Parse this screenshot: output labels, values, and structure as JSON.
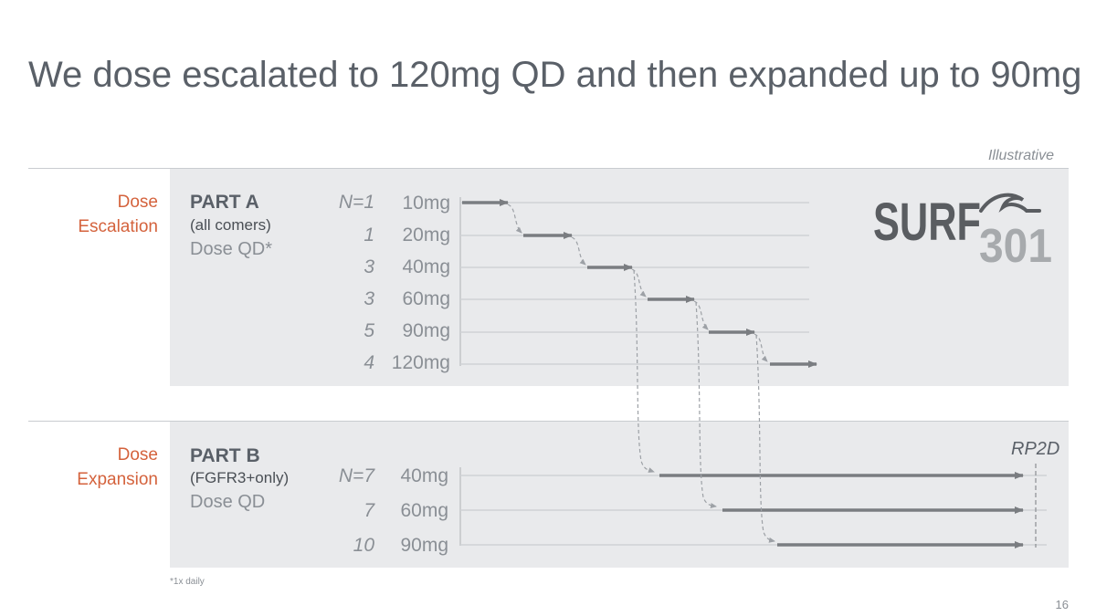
{
  "title": "We dose escalated to 120mg QD and then expanded up to 90mg",
  "illustrative": "Illustrative",
  "logo": {
    "word": "SURF",
    "number": "301",
    "icon": "wave-icon"
  },
  "part_a": {
    "side_label_line1": "Dose",
    "side_label_line2": "Escalation",
    "title": "PART A",
    "subtitle": "(all comers)",
    "dose_note": "Dose QD*",
    "n_prefix": "N=",
    "rows": [
      {
        "n": "1",
        "dose": "10mg"
      },
      {
        "n": "1",
        "dose": "20mg"
      },
      {
        "n": "3",
        "dose": "40mg"
      },
      {
        "n": "3",
        "dose": "60mg"
      },
      {
        "n": "5",
        "dose": "90mg"
      },
      {
        "n": "4",
        "dose": "120mg"
      }
    ]
  },
  "part_b": {
    "side_label_line1": "Dose",
    "side_label_line2": "Expansion",
    "title": "PART B",
    "subtitle": "(FGFR3+only)",
    "dose_note": "Dose QD",
    "n_prefix": "N=",
    "rows": [
      {
        "n": "7",
        "dose": "40mg"
      },
      {
        "n": "7",
        "dose": "60mg"
      },
      {
        "n": "10",
        "dose": "90mg"
      }
    ]
  },
  "rp2d_label": "RP2D",
  "footnote": "*1x daily",
  "page_number": "16",
  "colors": {
    "accent": "#d4623c",
    "arrow": "#7a7d81",
    "panel": "#e9eaec",
    "text": "#5a6068"
  }
}
